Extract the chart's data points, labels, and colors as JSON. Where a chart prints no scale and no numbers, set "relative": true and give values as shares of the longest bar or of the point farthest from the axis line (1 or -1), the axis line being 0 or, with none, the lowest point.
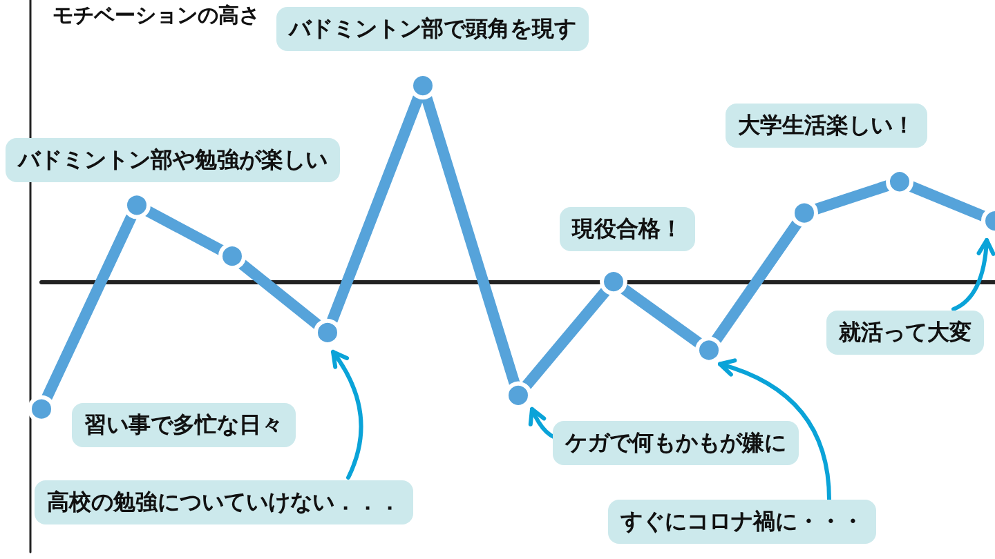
{
  "chart_data": {
    "type": "line",
    "relative": true,
    "ylabel": "モチベーションの高さ",
    "categories": [
      null,
      null,
      null,
      null,
      null,
      null,
      null,
      null,
      null,
      null,
      null
    ],
    "series": [
      {
        "color": "#56a3da",
        "values": [
          -0.65,
          0.39,
          0.13,
          -0.26,
          1,
          -0.58,
          0,
          -0.35,
          0.35,
          0.51,
          0.31
        ]
      }
    ],
    "marker": "circle",
    "grid": false,
    "annotations": [
      "バドミントン部で頭角を現す",
      "バドミントン部や勉強が楽しい",
      "現役合格！",
      "大学生活楽しい！",
      "習い事で多忙な日々",
      "高校の勉強についていけない．．．",
      "ケガで何もかもが嫌に",
      "すぐにコロナ禍に・・・",
      "就活って大変"
    ]
  }
}
